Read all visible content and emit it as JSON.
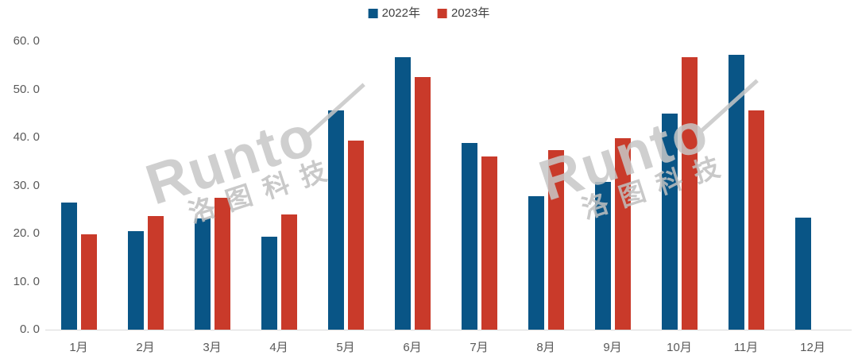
{
  "legend": {
    "items": [
      {
        "label": "2022年",
        "color": "#095586"
      },
      {
        "label": "2023年",
        "color": "#C93A2A"
      }
    ]
  },
  "watermark": {
    "brand": "Runto",
    "cn": "洛图科技"
  },
  "chart_data": {
    "type": "bar",
    "title": "",
    "xlabel": "",
    "ylabel": "",
    "categories": [
      "1月",
      "2月",
      "3月",
      "4月",
      "5月",
      "6月",
      "7月",
      "8月",
      "9月",
      "10月",
      "11月",
      "12月"
    ],
    "series": [
      {
        "name": "2022年",
        "color": "#095586",
        "values": [
          26.5,
          20.5,
          23.1,
          19.4,
          45.7,
          56.7,
          38.9,
          27.8,
          30.7,
          45.0,
          57.2,
          23.3
        ]
      },
      {
        "name": "2023年",
        "color": "#C93A2A",
        "values": [
          19.8,
          23.6,
          27.5,
          24.0,
          39.4,
          52.5,
          36.0,
          37.4,
          39.9,
          56.7,
          45.7,
          null
        ]
      }
    ],
    "ylim": [
      0,
      60
    ],
    "yticks": [
      {
        "value": 0,
        "label": "0. 0"
      },
      {
        "value": 10,
        "label": "10. 0"
      },
      {
        "value": 20,
        "label": "20. 0"
      },
      {
        "value": 30,
        "label": "30. 0"
      },
      {
        "value": 40,
        "label": "40. 0"
      },
      {
        "value": 50,
        "label": "50. 0"
      },
      {
        "value": 60,
        "label": "60. 0"
      }
    ],
    "grid": false,
    "legend_position": "top-center"
  }
}
